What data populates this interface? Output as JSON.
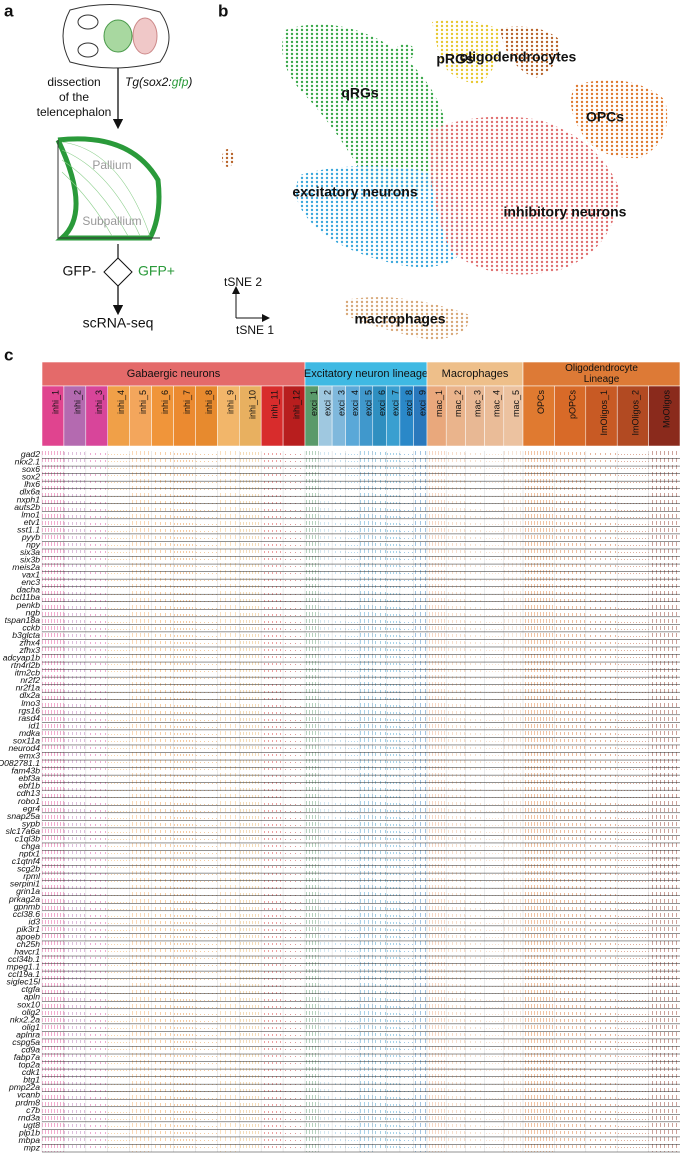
{
  "panel_labels": [
    "a",
    "b",
    "c"
  ],
  "panel_a": {
    "construct_parts": [
      "Tg(sox2:",
      "gfp",
      ")"
    ],
    "dissection": [
      "dissection",
      "of the",
      "telencephalon"
    ],
    "pallium": "Pallium",
    "subpallium": "Subpallium",
    "gfp_neg": "GFP-",
    "gfp_pos": "GFP+",
    "output": "scRNA-seq"
  },
  "panel_b": {
    "clusters": [
      {
        "label": "qRGs"
      },
      {
        "label": "pRGs"
      },
      {
        "label": "oligodendrocytes"
      },
      {
        "label": "OPCs"
      },
      {
        "label": "excitatory neurons"
      },
      {
        "label": "inhibitory neurons"
      },
      {
        "label": "macrophages"
      }
    ],
    "axis_y": "tSNE 2",
    "axis_x": "tSNE 1"
  },
  "panel_c": {
    "groups": [
      {
        "label": [
          "Gabaergic neurons"
        ],
        "clusters": [
          "inhi_1",
          "inhi_2",
          "inhi_3",
          "inhi_4",
          "inhi_5",
          "inhi_6",
          "inhi_7",
          "inhi_8",
          "inhi_9",
          "inhi_10",
          "inhi_11",
          "inhi_12"
        ]
      },
      {
        "label": [
          "Excitatory neuron lineage"
        ],
        "clusters": [
          "exci_1",
          "exci_2",
          "exci_3",
          "exci_4",
          "exci_5",
          "exci_6",
          "exci_7",
          "exci_8",
          "exci_9"
        ]
      },
      {
        "label": [
          "Macrophages"
        ],
        "clusters": [
          "mac_1",
          "mac_2",
          "mac_3",
          "mac_4",
          "mac_5"
        ]
      },
      {
        "label": [
          "Oligodendrocyte",
          "Lineage"
        ],
        "clusters": [
          "OPCs",
          "pOPCs",
          "ImOligos_1",
          "ImOligos_2",
          "MoOligos"
        ]
      }
    ],
    "genes": [
      "gad2",
      "nkx2.1",
      "sox6",
      "sox2",
      "lhx6",
      "dlx6a",
      "nxph1",
      "auts2b",
      "lmo1",
      "etv1",
      "sst1.1",
      "pyyb",
      "npy",
      "six3a",
      "six3b",
      "meis2a",
      "vax1",
      "enc3",
      "dacha",
      "bcl11ba",
      "penkb",
      "ngb",
      "tspan18a",
      "cckb",
      "b3glcta",
      "zfhx4",
      "zfhx3",
      "adcyap1b",
      "rtn4rl2b",
      "itm2cb",
      "nr2f2",
      "nr2f1a",
      "dlx2a",
      "lmo3",
      "rgs16",
      "rasd4",
      "id1",
      "mdka",
      "sox11a",
      "neurod4",
      "emx3",
      "FO082781.1",
      "fam43b",
      "ebf3a",
      "ebf1b",
      "cdh13",
      "robo1",
      "egr4",
      "snap25a",
      "sypb",
      "slc17a6a",
      "c1ql3b",
      "chga",
      "nptx1",
      "c1qtnf4",
      "scg2b",
      "rpml",
      "serpini1",
      "grin1a",
      "prkag2a",
      "gpnmb",
      "ccl38.6",
      "id3",
      "pik3r1",
      "apoeb",
      "ch25h",
      "havcr1",
      "ccl34b.1",
      "mpeg1.1",
      "ccl19a.1",
      "siglec15l",
      "ctgfa",
      "apln",
      "sox10",
      "olig2",
      "nkx2.2a",
      "olig1",
      "aplnra",
      "cspg5a",
      "cd9a",
      "fabp7a",
      "top2a",
      "cdk1",
      "btg1",
      "pmp22a",
      "vcanb",
      "prdm8",
      "c7b",
      "rnd3a",
      "ugt8",
      "plp1b",
      "mbpa",
      "mpz"
    ]
  }
}
